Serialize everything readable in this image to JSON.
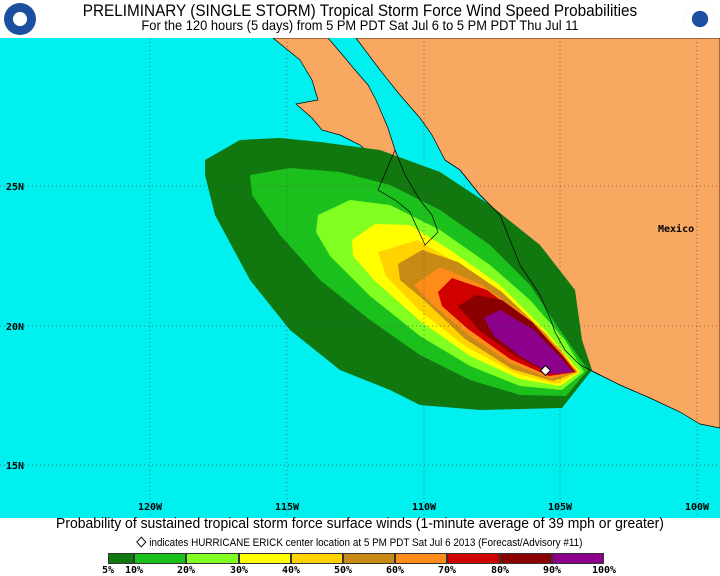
{
  "header": {
    "title": "PRELIMINARY (SINGLE STORM) Tropical Storm Force Wind Speed Probabilities",
    "subtitle": "For the 120 hours (5 days) from 5 PM PDT Sat Jul 6 to 5 PM PDT Thu Jul 11",
    "left_logo": "NOAA",
    "right_logo": "National Weather Service"
  },
  "map": {
    "ocean_color": "#00f0f0",
    "land_color": "#f8a860",
    "country_label": "Mexico",
    "lon_labels": [
      "120W",
      "115W",
      "110W",
      "105W",
      "100W"
    ],
    "lat_labels": [
      "25N",
      "20N",
      "15N"
    ],
    "storm_marker": "diamond-icon"
  },
  "footer": {
    "description": "Probability of sustained tropical storm force surface winds (1-minute average of 39 mph or greater)",
    "marker_note": "indicates HURRICANE ERICK center location at 5 PM PDT Sat Jul 6 2013 (Forecast/Advisory #11)"
  },
  "legend": {
    "labels": [
      "5%",
      "10%",
      "20%",
      "30%",
      "40%",
      "50%",
      "60%",
      "70%",
      "80%",
      "90%",
      "100%"
    ],
    "colors": [
      "#10780f",
      "#1cc01c",
      "#80ff20",
      "#ffff00",
      "#ffd200",
      "#c88a14",
      "#ff8c18",
      "#d00000",
      "#8a0000",
      "#8c008c"
    ]
  }
}
